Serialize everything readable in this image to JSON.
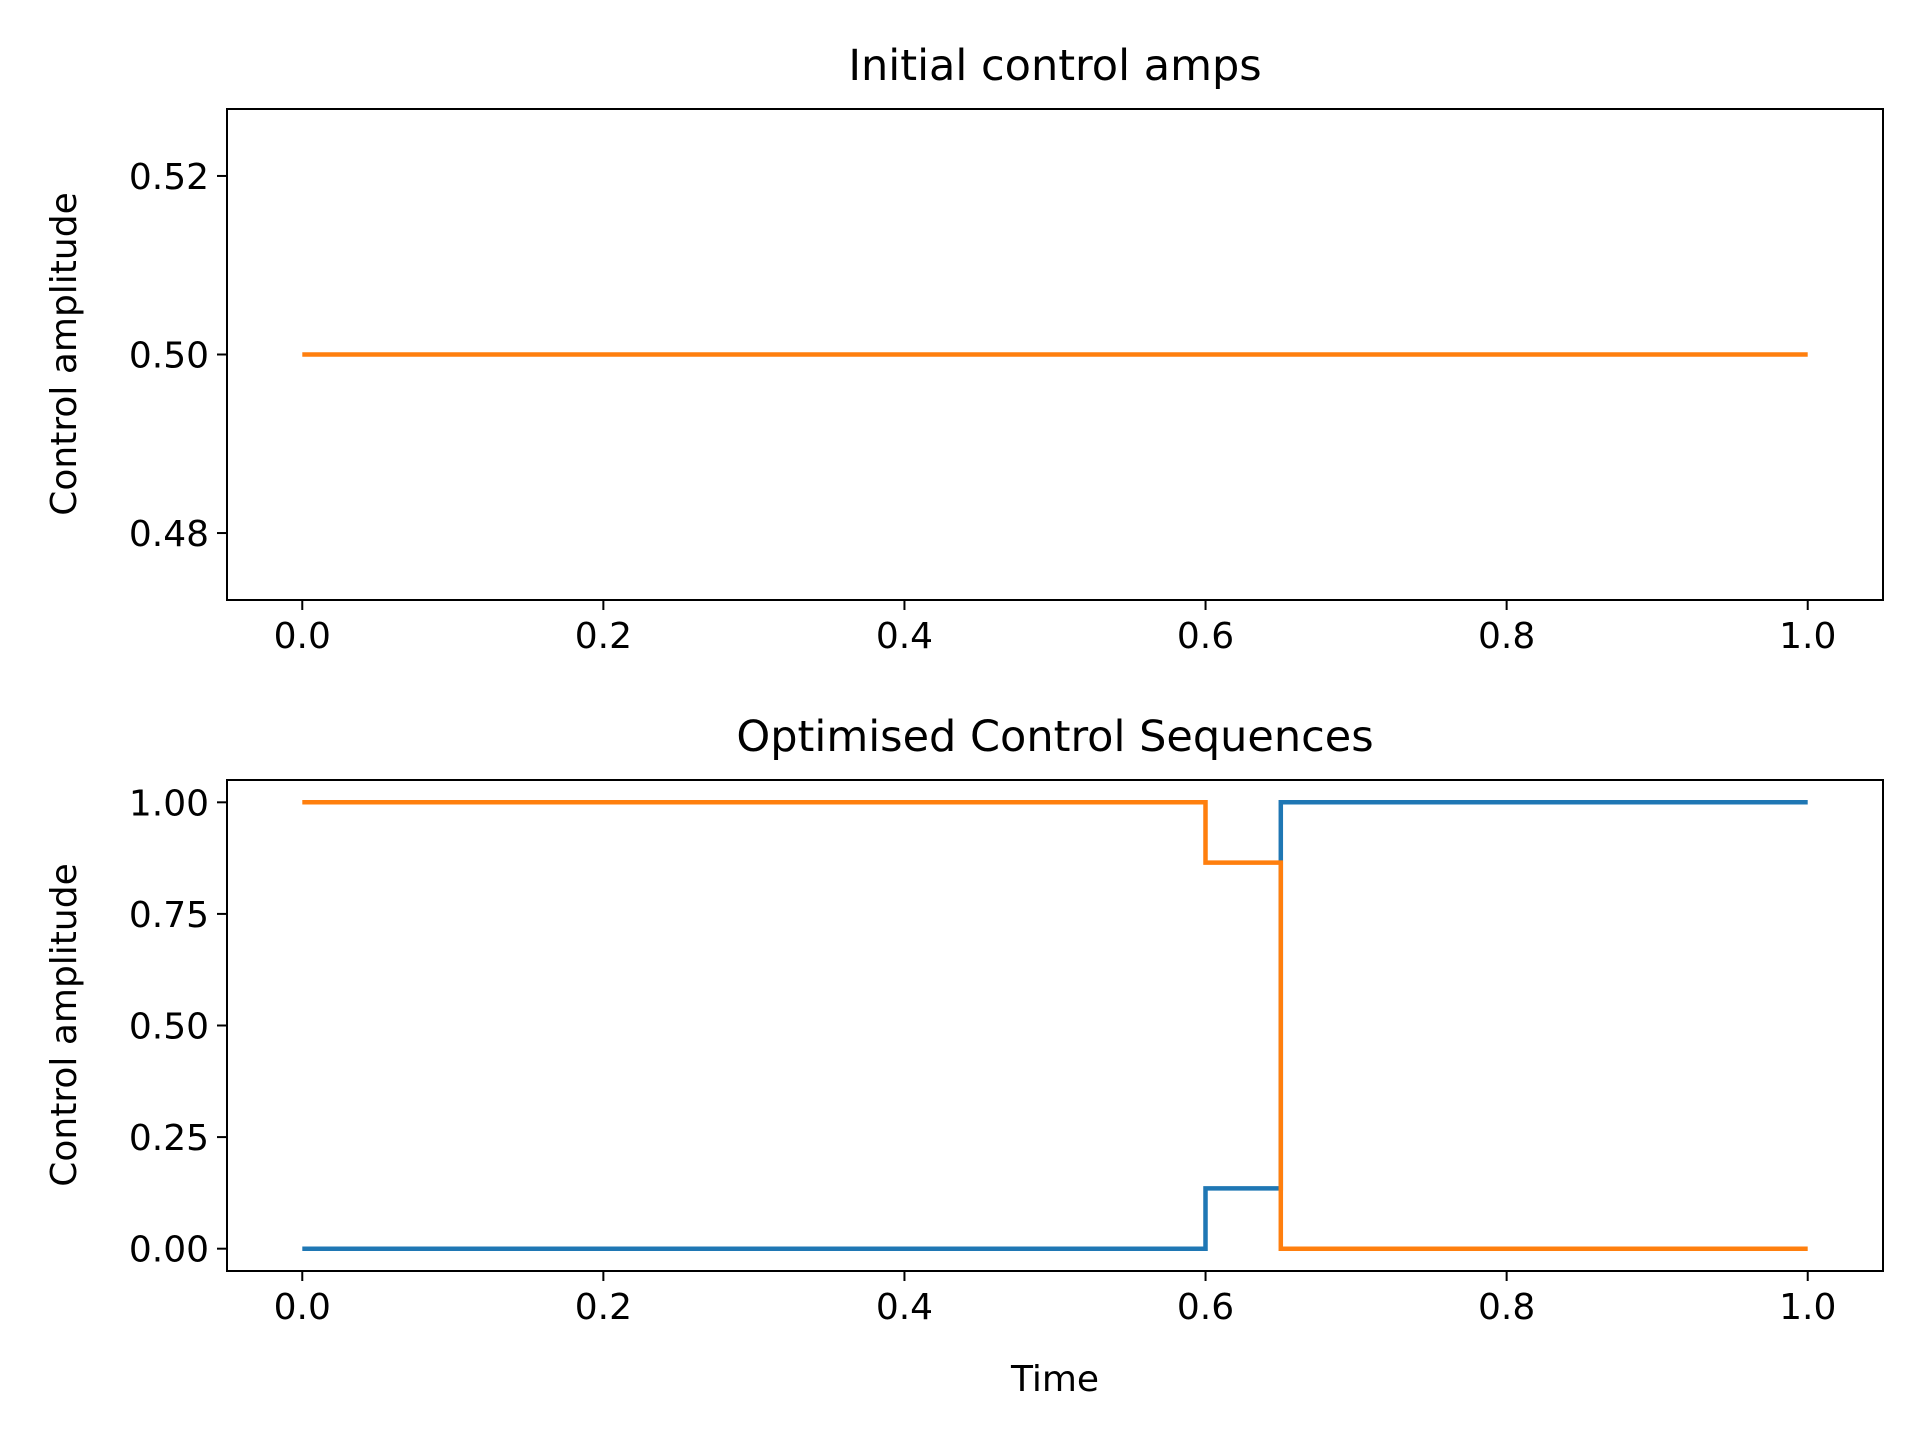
{
  "chart_data": [
    {
      "type": "line",
      "step": "post",
      "title": "Initial control amps",
      "xlabel": "",
      "ylabel": "Control amplitude",
      "xlim": [
        -0.05,
        1.05
      ],
      "ylim": [
        0.4725,
        0.5275
      ],
      "x_ticks": [
        0.0,
        0.2,
        0.4,
        0.6,
        0.8,
        1.0
      ],
      "x_tick_labels": [
        "0.0",
        "0.2",
        "0.4",
        "0.6",
        "0.8",
        "1.0"
      ],
      "y_ticks": [
        0.48,
        0.5,
        0.52
      ],
      "y_tick_labels": [
        "0.48",
        "0.50",
        "0.52"
      ],
      "grid": false,
      "series": [
        {
          "color": "#ff7f0e",
          "x": [
            0.0,
            1.0
          ],
          "y": [
            0.5,
            0.5
          ]
        }
      ]
    },
    {
      "type": "line",
      "step": "post",
      "title": "Optimised Control Sequences",
      "xlabel": "Time",
      "ylabel": "Control amplitude",
      "xlim": [
        -0.05,
        1.05
      ],
      "ylim": [
        -0.05,
        1.05
      ],
      "x_ticks": [
        0.0,
        0.2,
        0.4,
        0.6,
        0.8,
        1.0
      ],
      "x_tick_labels": [
        "0.0",
        "0.2",
        "0.4",
        "0.6",
        "0.8",
        "1.0"
      ],
      "y_ticks": [
        0.0,
        0.25,
        0.5,
        0.75,
        1.0
      ],
      "y_tick_labels": [
        "0.00",
        "0.25",
        "0.50",
        "0.75",
        "1.00"
      ],
      "grid": false,
      "series": [
        {
          "color": "#1f77b4",
          "x": [
            0.0,
            0.6,
            0.65,
            1.0
          ],
          "y": [
            0.0,
            0.135,
            1.0,
            1.0
          ]
        },
        {
          "color": "#ff7f0e",
          "x": [
            0.0,
            0.6,
            0.65,
            1.0
          ],
          "y": [
            1.0,
            0.865,
            0.0,
            0.0
          ]
        }
      ]
    }
  ]
}
